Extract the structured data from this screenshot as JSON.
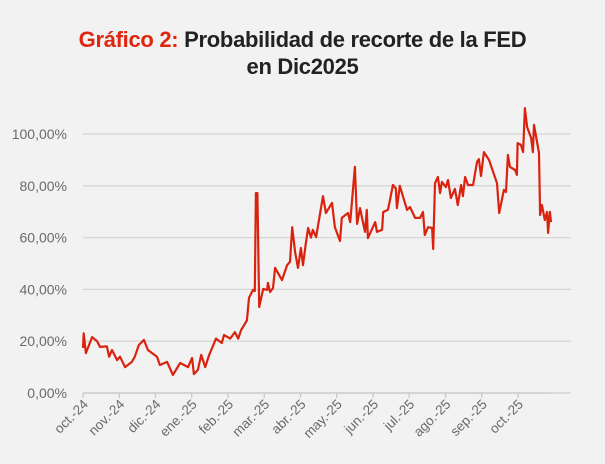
{
  "chart_data": {
    "type": "line",
    "title_prefix": "Gráfico 2:",
    "title_line1": "Probabilidad de recorte de la FED",
    "title_line2": "en Dic2025",
    "xlabel": "",
    "ylabel": "",
    "ylim": [
      0,
      100
    ],
    "xlim": [
      0,
      12.91
    ],
    "grid": true,
    "color": "#d9230f",
    "y_ticks": [
      0,
      20,
      40,
      60,
      80,
      100
    ],
    "y_tick_labels": [
      "0,00%",
      "20,00%",
      "40,00%",
      "60,00%",
      "80,00%",
      "100,00%"
    ],
    "x_tick_labels": [
      "oct.-24",
      "nov.-24",
      "dic.-24",
      "ene.-25",
      "feb.-25",
      "mar.-25",
      "abr.-25",
      "may.-25",
      "jun.-25",
      "jul.-25",
      "ago.-25",
      "sep.-25",
      "oct.-25"
    ],
    "series": [
      {
        "name": "Probabilidad de recorte",
        "x": [
          0,
          0.02,
          0.08,
          0.25,
          0.39,
          0.47,
          0.66,
          0.72,
          0.8,
          0.94,
          1.02,
          1.16,
          1.35,
          1.43,
          1.54,
          1.68,
          1.79,
          2.04,
          2.12,
          2.32,
          2.48,
          2.68,
          2.9,
          3.01,
          3.06,
          3.17,
          3.26,
          3.37,
          3.48,
          3.67,
          3.83,
          3.89,
          4.06,
          4.19,
          4.28,
          4.36,
          4.52,
          4.58,
          4.69,
          4.74,
          4.77,
          4.81,
          4.86,
          4.97,
          5.08,
          5.1,
          5.16,
          5.24,
          5.3,
          5.49,
          5.63,
          5.71,
          5.77,
          5.85,
          5.93,
          6.01,
          6.07,
          6.15,
          6.21,
          6.29,
          6.34,
          6.43,
          6.62,
          6.7,
          6.87,
          6.95,
          7.09,
          7.14,
          7.31,
          7.37,
          7.5,
          7.56,
          7.64,
          7.78,
          7.83,
          7.86,
          8.06,
          8.11,
          8.25,
          8.28,
          8.41,
          8.47,
          8.55,
          8.63,
          8.66,
          8.74,
          8.83,
          8.94,
          9.02,
          9.16,
          9.3,
          9.38,
          9.43,
          9.52,
          9.63,
          9.66,
          9.71,
          9.79,
          9.85,
          9.9,
          10.01,
          10.07,
          10.15,
          10.26,
          10.34,
          10.43,
          10.48,
          10.54,
          10.62,
          10.76,
          10.87,
          10.92,
          10.98,
          11.06,
          11.2,
          11.42,
          11.48,
          11.61,
          11.67,
          11.72,
          11.78,
          11.92,
          11.97,
          11.99,
          12.08,
          12.14,
          12.19,
          12.25,
          12.36,
          12.41,
          12.44,
          12.58,
          12.61,
          12.66,
          12.74,
          12.8,
          12.83,
          12.88,
          12.91
        ],
        "y": [
          17.4,
          23,
          15.4,
          21.6,
          20,
          17.8,
          18,
          14,
          16.6,
          12.7,
          14,
          10,
          12,
          14,
          18.5,
          20.5,
          16.6,
          14,
          10.8,
          12,
          7,
          11.6,
          10,
          13.5,
          7.3,
          8.9,
          14.7,
          10,
          14.7,
          21,
          19.3,
          22.4,
          21,
          23.5,
          21,
          24.3,
          28,
          36.7,
          39.8,
          39.4,
          77.2,
          77.2,
          33.2,
          40.2,
          39.8,
          42.5,
          39,
          40.5,
          48.3,
          43.6,
          49.4,
          50.6,
          64,
          54.4,
          48.3,
          56,
          49.4,
          58,
          63.7,
          60,
          63,
          60.2,
          76,
          69.5,
          73.4,
          64,
          58.7,
          67.6,
          69.5,
          66,
          87.3,
          65.3,
          71.4,
          62.2,
          70.7,
          59.8,
          66,
          62.2,
          63,
          69.9,
          70.7,
          74.5,
          80.3,
          79,
          71.4,
          80,
          75.7,
          70.7,
          71.8,
          67.6,
          67.6,
          69.9,
          61,
          64,
          63.7,
          55.6,
          81,
          83.4,
          77.2,
          81.5,
          79.5,
          82.2,
          75.3,
          78.8,
          72.6,
          80.3,
          76,
          83.4,
          80.3,
          80.3,
          89.2,
          90.3,
          83.8,
          93,
          90,
          81,
          69.5,
          78.4,
          77.6,
          91.9,
          87.3,
          86.1,
          84.2,
          96.5,
          95.8,
          93,
          110,
          102.7,
          98.5,
          93,
          103.5,
          92.7,
          68.7,
          72.6,
          66.8,
          69.9,
          61.8,
          69.9,
          66
        ]
      }
    ]
  }
}
